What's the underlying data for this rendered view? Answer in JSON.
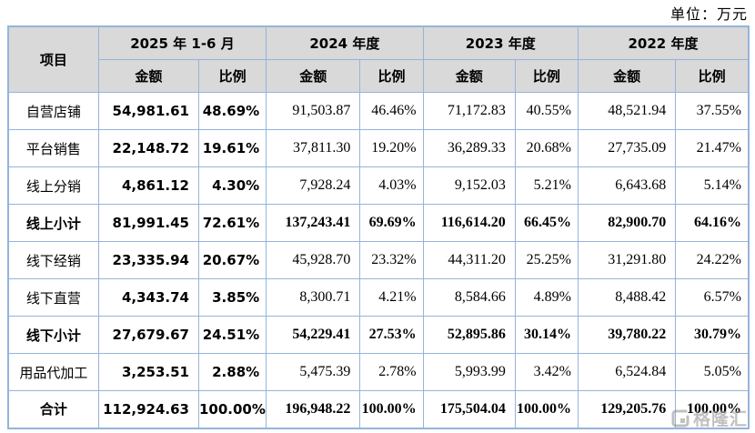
{
  "unit_label": "单位：万元",
  "table": {
    "item_header": "项目",
    "periods": [
      {
        "label": "2025 年 1-6 月"
      },
      {
        "label": "2024 年度"
      },
      {
        "label": "2023 年度"
      },
      {
        "label": "2022 年度"
      }
    ],
    "sub_headers": [
      "金额",
      "比例",
      "金额",
      "比例",
      "金额",
      "比例",
      "金额",
      "比例"
    ],
    "rows": [
      {
        "label": "自营店铺",
        "bold": false,
        "values": [
          "54,981.61",
          "48.69%",
          "91,503.87",
          "46.46%",
          "71,172.83",
          "40.55%",
          "48,521.94",
          "37.55%"
        ]
      },
      {
        "label": "平台销售",
        "bold": false,
        "values": [
          "22,148.72",
          "19.61%",
          "37,811.30",
          "19.20%",
          "36,289.33",
          "20.68%",
          "27,735.09",
          "21.47%"
        ]
      },
      {
        "label": "线上分销",
        "bold": false,
        "values": [
          "4,861.12",
          "4.30%",
          "7,928.24",
          "4.03%",
          "9,152.03",
          "5.21%",
          "6,643.68",
          "5.14%"
        ]
      },
      {
        "label": "线上小计",
        "bold": true,
        "values": [
          "81,991.45",
          "72.61%",
          "137,243.41",
          "69.69%",
          "116,614.20",
          "66.45%",
          "82,900.70",
          "64.16%"
        ]
      },
      {
        "label": "线下经销",
        "bold": false,
        "values": [
          "23,335.94",
          "20.67%",
          "45,928.70",
          "23.32%",
          "44,311.20",
          "25.25%",
          "31,291.80",
          "24.22%"
        ]
      },
      {
        "label": "线下直营",
        "bold": false,
        "values": [
          "4,343.74",
          "3.85%",
          "8,300.71",
          "4.21%",
          "8,584.66",
          "4.89%",
          "8,488.42",
          "6.57%"
        ]
      },
      {
        "label": "线下小计",
        "bold": true,
        "values": [
          "27,679.67",
          "24.51%",
          "54,229.41",
          "27.53%",
          "52,895.86",
          "30.14%",
          "39,780.22",
          "30.79%"
        ]
      },
      {
        "label": "用品代加工",
        "bold": false,
        "values": [
          "3,253.51",
          "2.88%",
          "5,475.39",
          "2.78%",
          "5,993.99",
          "3.42%",
          "6,524.84",
          "5.05%"
        ]
      },
      {
        "label": "合计",
        "bold": true,
        "values": [
          "112,924.63",
          "100.00%",
          "196,948.22",
          "100.00%",
          "175,504.04",
          "100.00%",
          "129,205.76",
          "100.00%"
        ]
      }
    ]
  },
  "watermark": {
    "text": "格隆汇",
    "icon": "gelonghui-logo"
  },
  "colors": {
    "border": "#93b5da",
    "header_bg": "#d9d9d9",
    "watermark": "#8c8c8c"
  }
}
